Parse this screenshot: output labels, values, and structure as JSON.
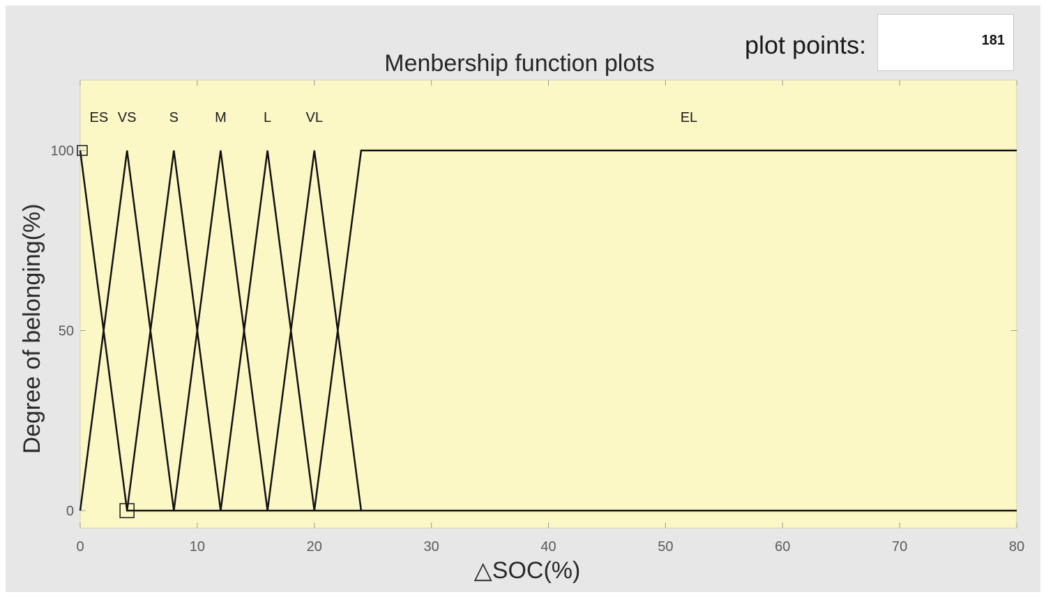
{
  "controls": {
    "plot_points_label": "plot points:",
    "plot_points_value": "181"
  },
  "chart_data": {
    "type": "line",
    "title": "Menbership function plots",
    "xlabel": "△SOC(%)",
    "ylabel": "Degree of belonging(%)",
    "xlim": [
      0,
      80
    ],
    "ylim": [
      0,
      120
    ],
    "xticks": [
      0,
      10,
      20,
      30,
      40,
      50,
      60,
      70,
      80
    ],
    "yticks": [
      0,
      50,
      100
    ],
    "background": "#fbf8c6",
    "line_color": "#111111",
    "series": [
      {
        "name": "ES",
        "label_x": 1.6,
        "points": [
          [
            0,
            100
          ],
          [
            4,
            0
          ],
          [
            80,
            0
          ]
        ]
      },
      {
        "name": "VS",
        "label_x": 4,
        "points": [
          [
            0,
            0
          ],
          [
            4,
            100
          ],
          [
            8,
            0
          ]
        ]
      },
      {
        "name": "S",
        "label_x": 8,
        "points": [
          [
            4,
            0
          ],
          [
            8,
            100
          ],
          [
            12,
            0
          ]
        ]
      },
      {
        "name": "M",
        "label_x": 12,
        "points": [
          [
            8,
            0
          ],
          [
            12,
            100
          ],
          [
            16,
            0
          ]
        ]
      },
      {
        "name": "L",
        "label_x": 16,
        "points": [
          [
            12,
            0
          ],
          [
            16,
            100
          ],
          [
            20,
            0
          ]
        ]
      },
      {
        "name": "VL",
        "label_x": 20,
        "points": [
          [
            16,
            0
          ],
          [
            20,
            100
          ],
          [
            24,
            0
          ]
        ]
      },
      {
        "name": "EL",
        "label_x": 52,
        "points": [
          [
            20,
            0
          ],
          [
            24,
            100
          ],
          [
            80,
            100
          ]
        ]
      }
    ],
    "markers": [
      [
        0,
        100
      ],
      [
        4,
        0
      ]
    ]
  }
}
